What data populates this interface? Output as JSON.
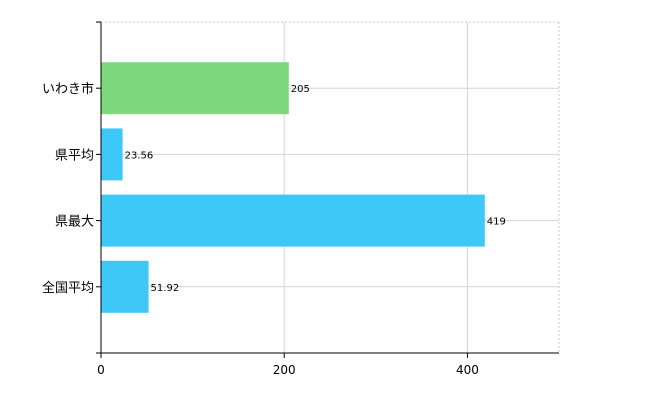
{
  "chart_data": {
    "type": "bar",
    "orientation": "horizontal",
    "title": "",
    "xlabel": "",
    "ylabel": "",
    "categories": [
      "いわき市",
      "県平均",
      "県最大",
      "全国平均"
    ],
    "values": [
      205,
      23.56,
      419,
      51.92
    ],
    "value_labels": [
      "205",
      "23.56",
      "419",
      "51.92"
    ],
    "bar_colors": [
      "#7ed87e",
      "#3ec8f8",
      "#3ec8f8",
      "#3ec8f8"
    ],
    "xlim": [
      0,
      500
    ],
    "xticks": [
      0,
      200,
      400
    ],
    "xtick_labels": [
      "0",
      "200",
      "400"
    ],
    "grid": true,
    "legend": "none"
  }
}
